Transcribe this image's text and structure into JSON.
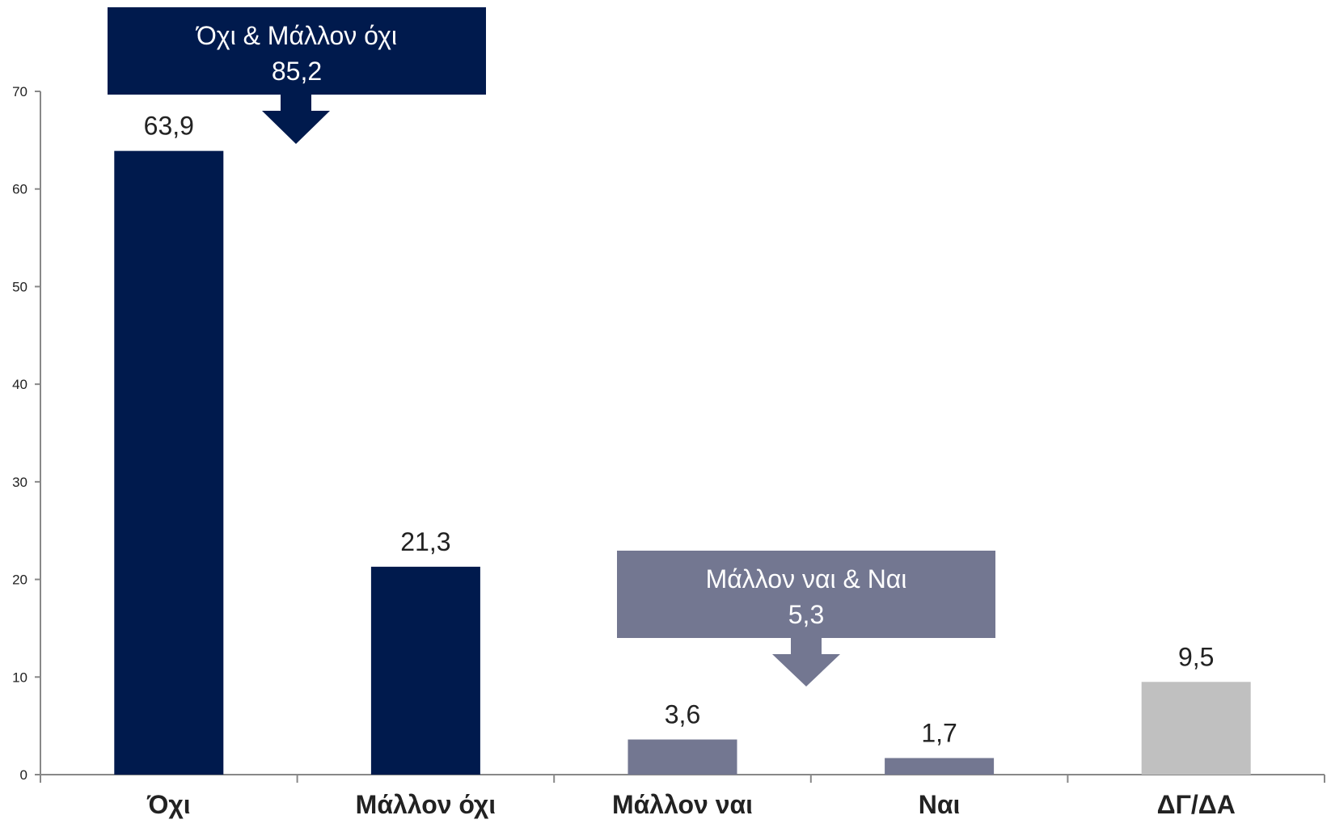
{
  "chart_data": {
    "type": "bar",
    "title": "",
    "xlabel": "",
    "ylabel": "",
    "ylim": [
      0,
      70
    ],
    "yticks": [
      0,
      10,
      20,
      30,
      40,
      50,
      60,
      70
    ],
    "categories": [
      "Όχι",
      "Μάλλον όχι",
      "Μάλλον ναι",
      "Ναι",
      "ΔΓ/ΔΑ"
    ],
    "values": [
      63.9,
      21.3,
      3.6,
      1.7,
      9.5
    ],
    "value_labels": [
      "63,9",
      "21,3",
      "3,6",
      "1,7",
      "9,5"
    ],
    "bar_colors": [
      "#001a4d",
      "#001a4d",
      "#737791",
      "#737791",
      "#c0c0c0"
    ],
    "grid": false,
    "annotations": [
      {
        "line1": "Όχι & Μάλλον όχι",
        "line2": "85,2",
        "color": "#001a4d"
      },
      {
        "line1": "Μάλλον ναι & Ναι",
        "line2": "5,3",
        "color": "#737791"
      }
    ]
  }
}
